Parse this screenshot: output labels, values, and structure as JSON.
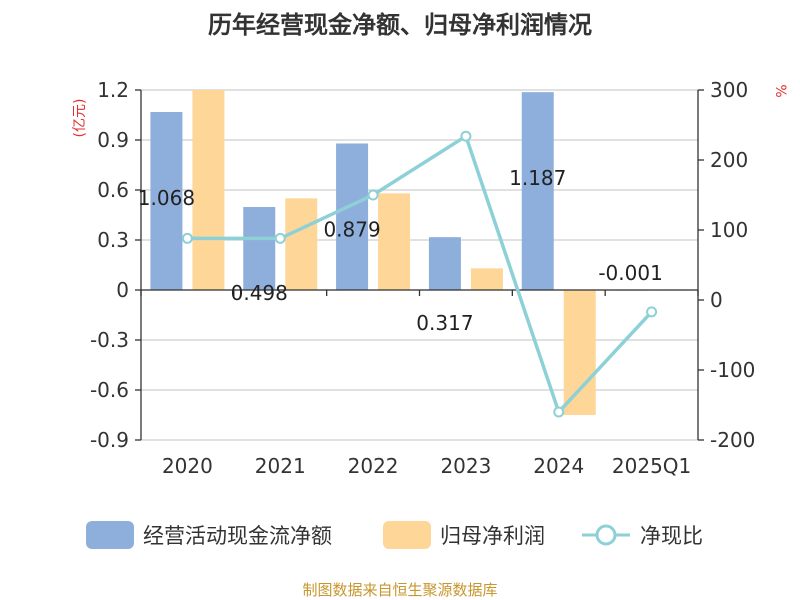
{
  "chart_data": {
    "type": "bar",
    "title": "历年经营现金净额、归母净利润情况",
    "categories": [
      "2020",
      "2021",
      "2022",
      "2023",
      "2024",
      "2025Q1"
    ],
    "left_axis": {
      "unit": "(亿元)",
      "ylim": [
        -0.9,
        1.2
      ],
      "ticks": [
        "1.2",
        "0.9",
        "0.6",
        "0.3",
        "0",
        "-0.3",
        "-0.6",
        "-0.9"
      ],
      "tick_values": [
        1.2,
        0.9,
        0.6,
        0.3,
        0,
        -0.3,
        -0.6,
        -0.9
      ]
    },
    "right_axis": {
      "unit": "%",
      "ylim": [
        -200,
        300
      ],
      "ticks": [
        "300",
        "200",
        "100",
        "0",
        "-100",
        "-200"
      ],
      "tick_values": [
        300,
        200,
        100,
        0,
        -100,
        -200
      ]
    },
    "series": [
      {
        "name": "经营活动现金流净额",
        "type": "bar",
        "axis": "left",
        "color": "#8eaedb",
        "values": [
          1.068,
          0.498,
          0.879,
          0.317,
          1.187,
          -0.001
        ],
        "labels": [
          "1.068",
          "0.498",
          "0.879",
          "0.317",
          "1.187",
          "-0.001"
        ]
      },
      {
        "name": "归母净利润",
        "type": "bar",
        "axis": "left",
        "color": "#fdd698",
        "values": [
          1.2,
          0.55,
          0.58,
          0.13,
          -0.75,
          0.0
        ]
      },
      {
        "name": "净现比",
        "type": "line",
        "axis": "right",
        "color": "#8dd1d6",
        "values": [
          88,
          88,
          150,
          234,
          -160,
          -17
        ]
      }
    ],
    "grid": true,
    "legend": "bottom"
  },
  "source": "制图数据来自恒生聚源数据库"
}
